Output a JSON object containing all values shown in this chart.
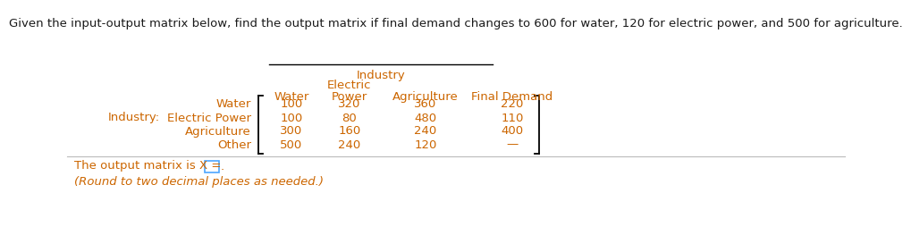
{
  "title": "Given the input-output matrix below, find the output matrix if final demand changes to 600 for water, 120 for electric power, and 500 for agriculture.",
  "title_color": "#1a1a1a",
  "title_fontsize": 9.5,
  "industry_header": "Industry",
  "electric_header": "Electric",
  "col_headers": [
    "Water",
    "Power",
    "Agriculture",
    "Final Demand"
  ],
  "row_labels_right": [
    "Water",
    "Electric Power",
    "Agriculture",
    "Other"
  ],
  "table_data": [
    [
      "100",
      "320",
      "360",
      "220"
    ],
    [
      "100",
      "80",
      "480",
      "110"
    ],
    [
      "300",
      "160",
      "240",
      "400"
    ],
    [
      "500",
      "240",
      "120",
      "—"
    ]
  ],
  "output_text": "The output matrix is X =",
  "round_text": "(Round to two decimal places as needed.)",
  "text_color": "#cc6600",
  "header_color": "#cc6600",
  "title_text_color": "#1a1a1a",
  "box_color": "#4da6ff",
  "bg_color": "#ffffff",
  "font_family": "DejaVu Sans",
  "font_size": 9.5,
  "sep_color": "#bbbbbb"
}
